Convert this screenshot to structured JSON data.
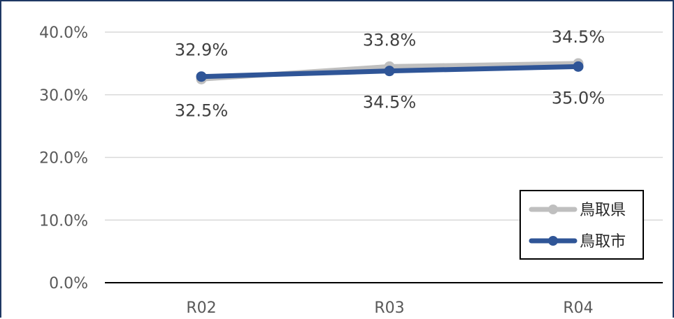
{
  "chart_data": {
    "type": "line",
    "categories": [
      "R02",
      "R03",
      "R04"
    ],
    "ylim": [
      0,
      40
    ],
    "y_ticks": [
      "0.0%",
      "10.0%",
      "20.0%",
      "30.0%",
      "40.0%"
    ],
    "grid": true,
    "legend_position": "bottom-right",
    "series": [
      {
        "name": "鳥取県",
        "values": [
          32.5,
          34.5,
          35.0
        ],
        "labels": [
          "32.5%",
          "34.5%",
          "35.0%"
        ],
        "color": "#bfbfbf"
      },
      {
        "name": "鳥取市",
        "values": [
          32.9,
          33.8,
          34.5
        ],
        "labels": [
          "32.9%",
          "33.8%",
          "34.5%"
        ],
        "color": "#2f5597"
      }
    ]
  }
}
